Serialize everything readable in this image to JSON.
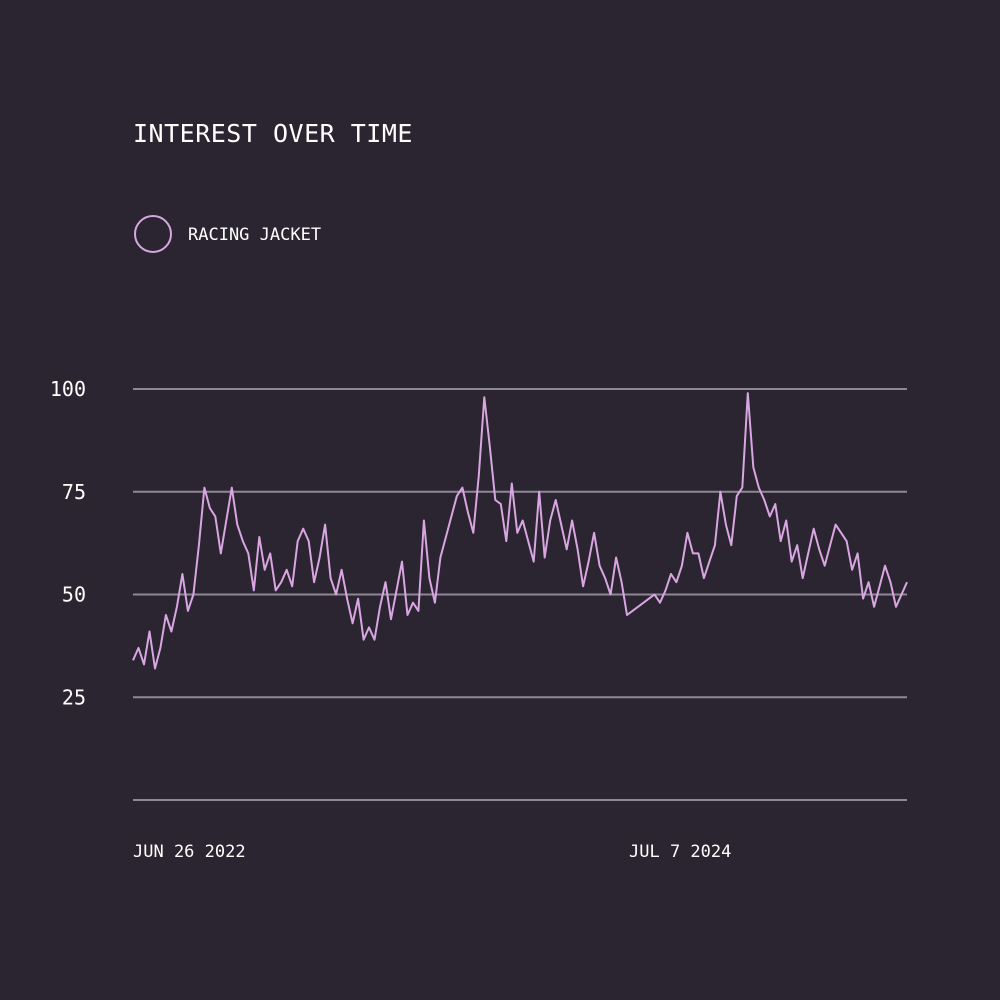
{
  "colors": {
    "background": "#2a2530",
    "series": "#d9a6e2",
    "grid": "#8f8796",
    "text": "#ffffff"
  },
  "chart_data": {
    "type": "line",
    "title": "INTEREST OVER TIME",
    "x_labels": [
      "JUN 26 2022",
      "JUL 7 2024"
    ],
    "ylim": [
      0,
      100
    ],
    "yticks": [
      25,
      50,
      75,
      100
    ],
    "grid": true,
    "legend_position": "top-left",
    "series": [
      {
        "name": "RACING JACKET",
        "color": "#d9a6e2",
        "marker": "circle",
        "values": [
          34,
          37,
          33,
          41,
          32,
          37,
          45,
          41,
          47,
          55,
          46,
          50,
          62,
          76,
          71,
          69,
          60,
          68,
          76,
          67,
          63,
          60,
          51,
          64,
          56,
          60,
          51,
          53,
          56,
          52,
          63,
          66,
          63,
          53,
          59,
          67,
          54,
          50,
          56,
          49,
          43,
          49,
          39,
          42,
          39,
          47,
          53,
          44,
          51,
          58,
          45,
          48,
          46,
          68,
          54,
          48,
          59,
          64,
          69,
          74,
          76,
          70,
          65,
          79,
          98,
          86,
          73,
          72,
          63,
          77,
          65,
          68,
          63,
          58,
          75,
          59,
          68,
          73,
          67,
          61,
          68,
          61,
          52,
          58,
          65,
          57,
          54,
          50,
          59,
          53,
          45,
          46,
          47,
          48,
          49,
          50,
          48,
          51,
          55,
          53,
          57,
          65,
          60,
          60,
          54,
          58,
          62,
          75,
          67,
          62,
          74,
          76,
          99,
          81,
          76,
          73,
          69,
          72,
          63,
          68,
          58,
          62,
          54,
          60,
          66,
          61,
          57,
          62,
          67,
          65,
          63,
          56,
          60,
          49,
          53,
          47,
          52,
          57,
          53,
          47,
          50,
          53
        ]
      }
    ]
  }
}
